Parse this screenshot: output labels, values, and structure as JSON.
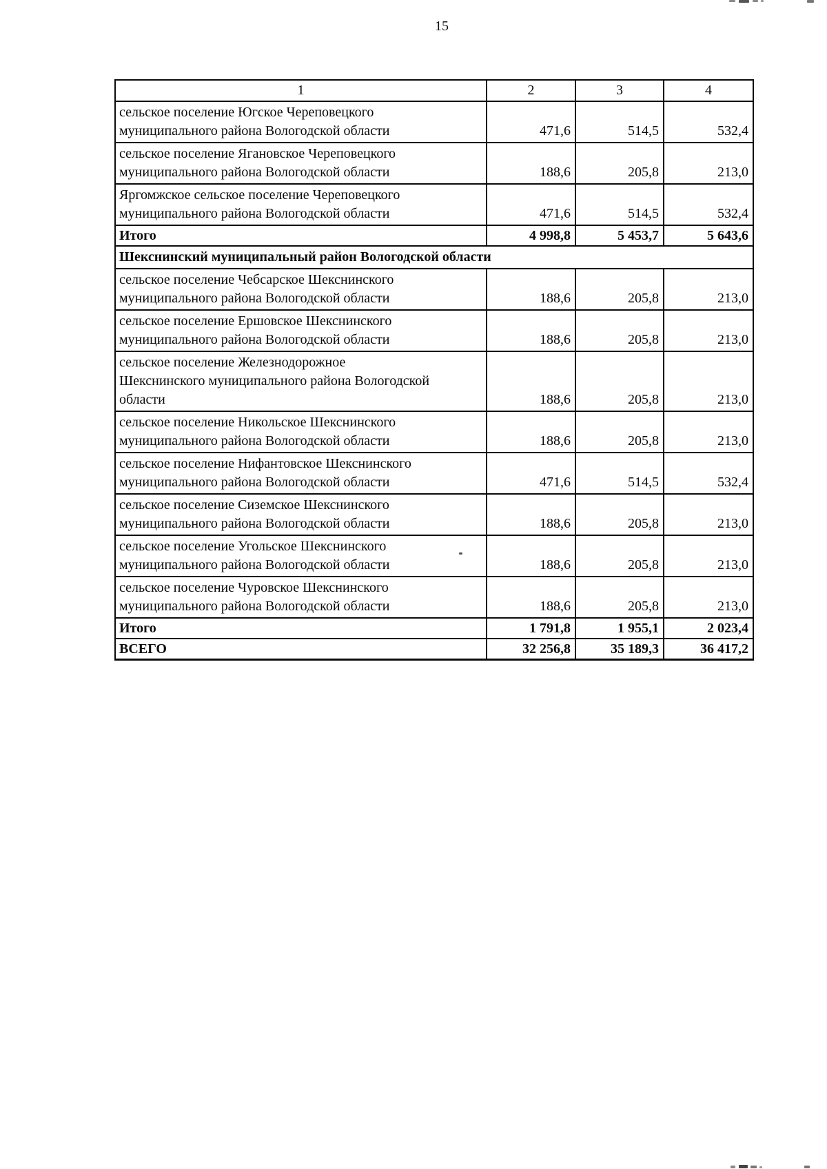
{
  "page": {
    "number": "15"
  },
  "table": {
    "header": [
      "1",
      "2",
      "3",
      "4"
    ],
    "rows": [
      {
        "type": "data",
        "lines": [
          "сельское поселение Югское Череповецкого",
          "муниципального района Вологодской области"
        ],
        "values": [
          "471,6",
          "514,5",
          "532,4"
        ]
      },
      {
        "type": "data",
        "lines": [
          "сельское поселение Ягановское Череповецкого",
          "муниципального района Вологодской области"
        ],
        "values": [
          "188,6",
          "205,8",
          "213,0"
        ]
      },
      {
        "type": "data",
        "lines": [
          "Яргомжское сельское поселение Череповецкого",
          "муниципального района Вологодской области"
        ],
        "values": [
          "471,6",
          "514,5",
          "532,4"
        ]
      },
      {
        "type": "subtotal",
        "label": "Итого",
        "values": [
          "4 998,8",
          "5 453,7",
          "5 643,6"
        ]
      },
      {
        "type": "section",
        "label": "Шекснинский муниципальный район Вологодской области"
      },
      {
        "type": "data",
        "lines": [
          "сельское поселение Чебсарское Шекснинского",
          "муниципального района Вологодской области"
        ],
        "values": [
          "188,6",
          "205,8",
          "213,0"
        ]
      },
      {
        "type": "data",
        "lines": [
          "сельское поселение Ершовское Шекснинского",
          "муниципального района Вологодской области"
        ],
        "values": [
          "188,6",
          "205,8",
          "213,0"
        ]
      },
      {
        "type": "data",
        "lines": [
          "сельское поселение Железнодорожное",
          "Шекснинского муниципального района Вологодской",
          "области"
        ],
        "values": [
          "188,6",
          "205,8",
          "213,0"
        ]
      },
      {
        "type": "data",
        "lines": [
          "сельское поселение Никольское Шекснинского",
          "муниципального района Вологодской области"
        ],
        "values": [
          "188,6",
          "205,8",
          "213,0"
        ]
      },
      {
        "type": "data",
        "lines": [
          "сельское поселение Нифантовское Шекснинского",
          "муниципального района Вологодской области"
        ],
        "values": [
          "471,6",
          "514,5",
          "532,4"
        ]
      },
      {
        "type": "data",
        "lines": [
          "сельское поселение Сиземское Шекснинского",
          "муниципального района Вологодской области"
        ],
        "values": [
          "188,6",
          "205,8",
          "213,0"
        ]
      },
      {
        "type": "data",
        "lines": [
          "сельское поселение Угольское Шекснинского",
          "муниципального района Вологодской области"
        ],
        "values": [
          "188,6",
          "205,8",
          "213,0"
        ]
      },
      {
        "type": "data",
        "lines": [
          "сельское поселение Чуровское Шекснинского",
          "муниципального района Вологодской области"
        ],
        "values": [
          "188,6",
          "205,8",
          "213,0"
        ]
      },
      {
        "type": "subtotal",
        "label": "Итого",
        "values": [
          "1 791,8",
          "1 955,1",
          "2 023,4"
        ]
      },
      {
        "type": "total",
        "label": "ВСЕГО",
        "values": [
          "32 256,8",
          "35 189,3",
          "36 417,2"
        ]
      }
    ]
  }
}
